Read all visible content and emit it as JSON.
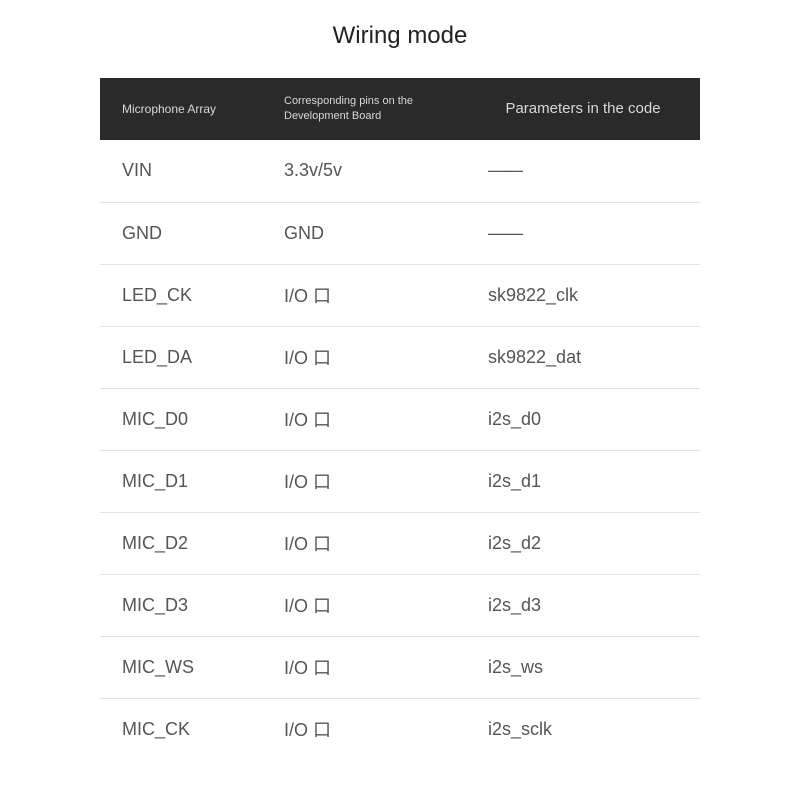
{
  "title": "Wiring mode",
  "table": {
    "background_header": "#2a2a2a",
    "header_text_color": "#d8d8d8",
    "row_border_color": "#e3e3e3",
    "body_text_color": "#555555",
    "columns": [
      {
        "label": "Microphone Array"
      },
      {
        "label": "Corresponding pins on the Development Board"
      },
      {
        "label": "Parameters in the code"
      }
    ],
    "rows": [
      {
        "c0": "VIN",
        "c1": "3.3v/5v",
        "c2": "——"
      },
      {
        "c0": "GND",
        "c1": "GND",
        "c2": "——"
      },
      {
        "c0": "LED_CK",
        "c1": "I/O 口",
        "c2": "sk9822_clk"
      },
      {
        "c0": "LED_DA",
        "c1": "I/O 口",
        "c2": "sk9822_dat"
      },
      {
        "c0": "MIC_D0",
        "c1": "I/O 口",
        "c2": "i2s_d0"
      },
      {
        "c0": "MIC_D1",
        "c1": "I/O 口",
        "c2": "i2s_d1"
      },
      {
        "c0": "MIC_D2",
        "c1": "I/O 口",
        "c2": "i2s_d2"
      },
      {
        "c0": "MIC_D3",
        "c1": "I/O 口",
        "c2": "i2s_d3"
      },
      {
        "c0": "MIC_WS",
        "c1": "I/O 口",
        "c2": "i2s_ws"
      },
      {
        "c0": "MIC_CK",
        "c1": "I/O 口",
        "c2": "i2s_sclk"
      }
    ]
  }
}
